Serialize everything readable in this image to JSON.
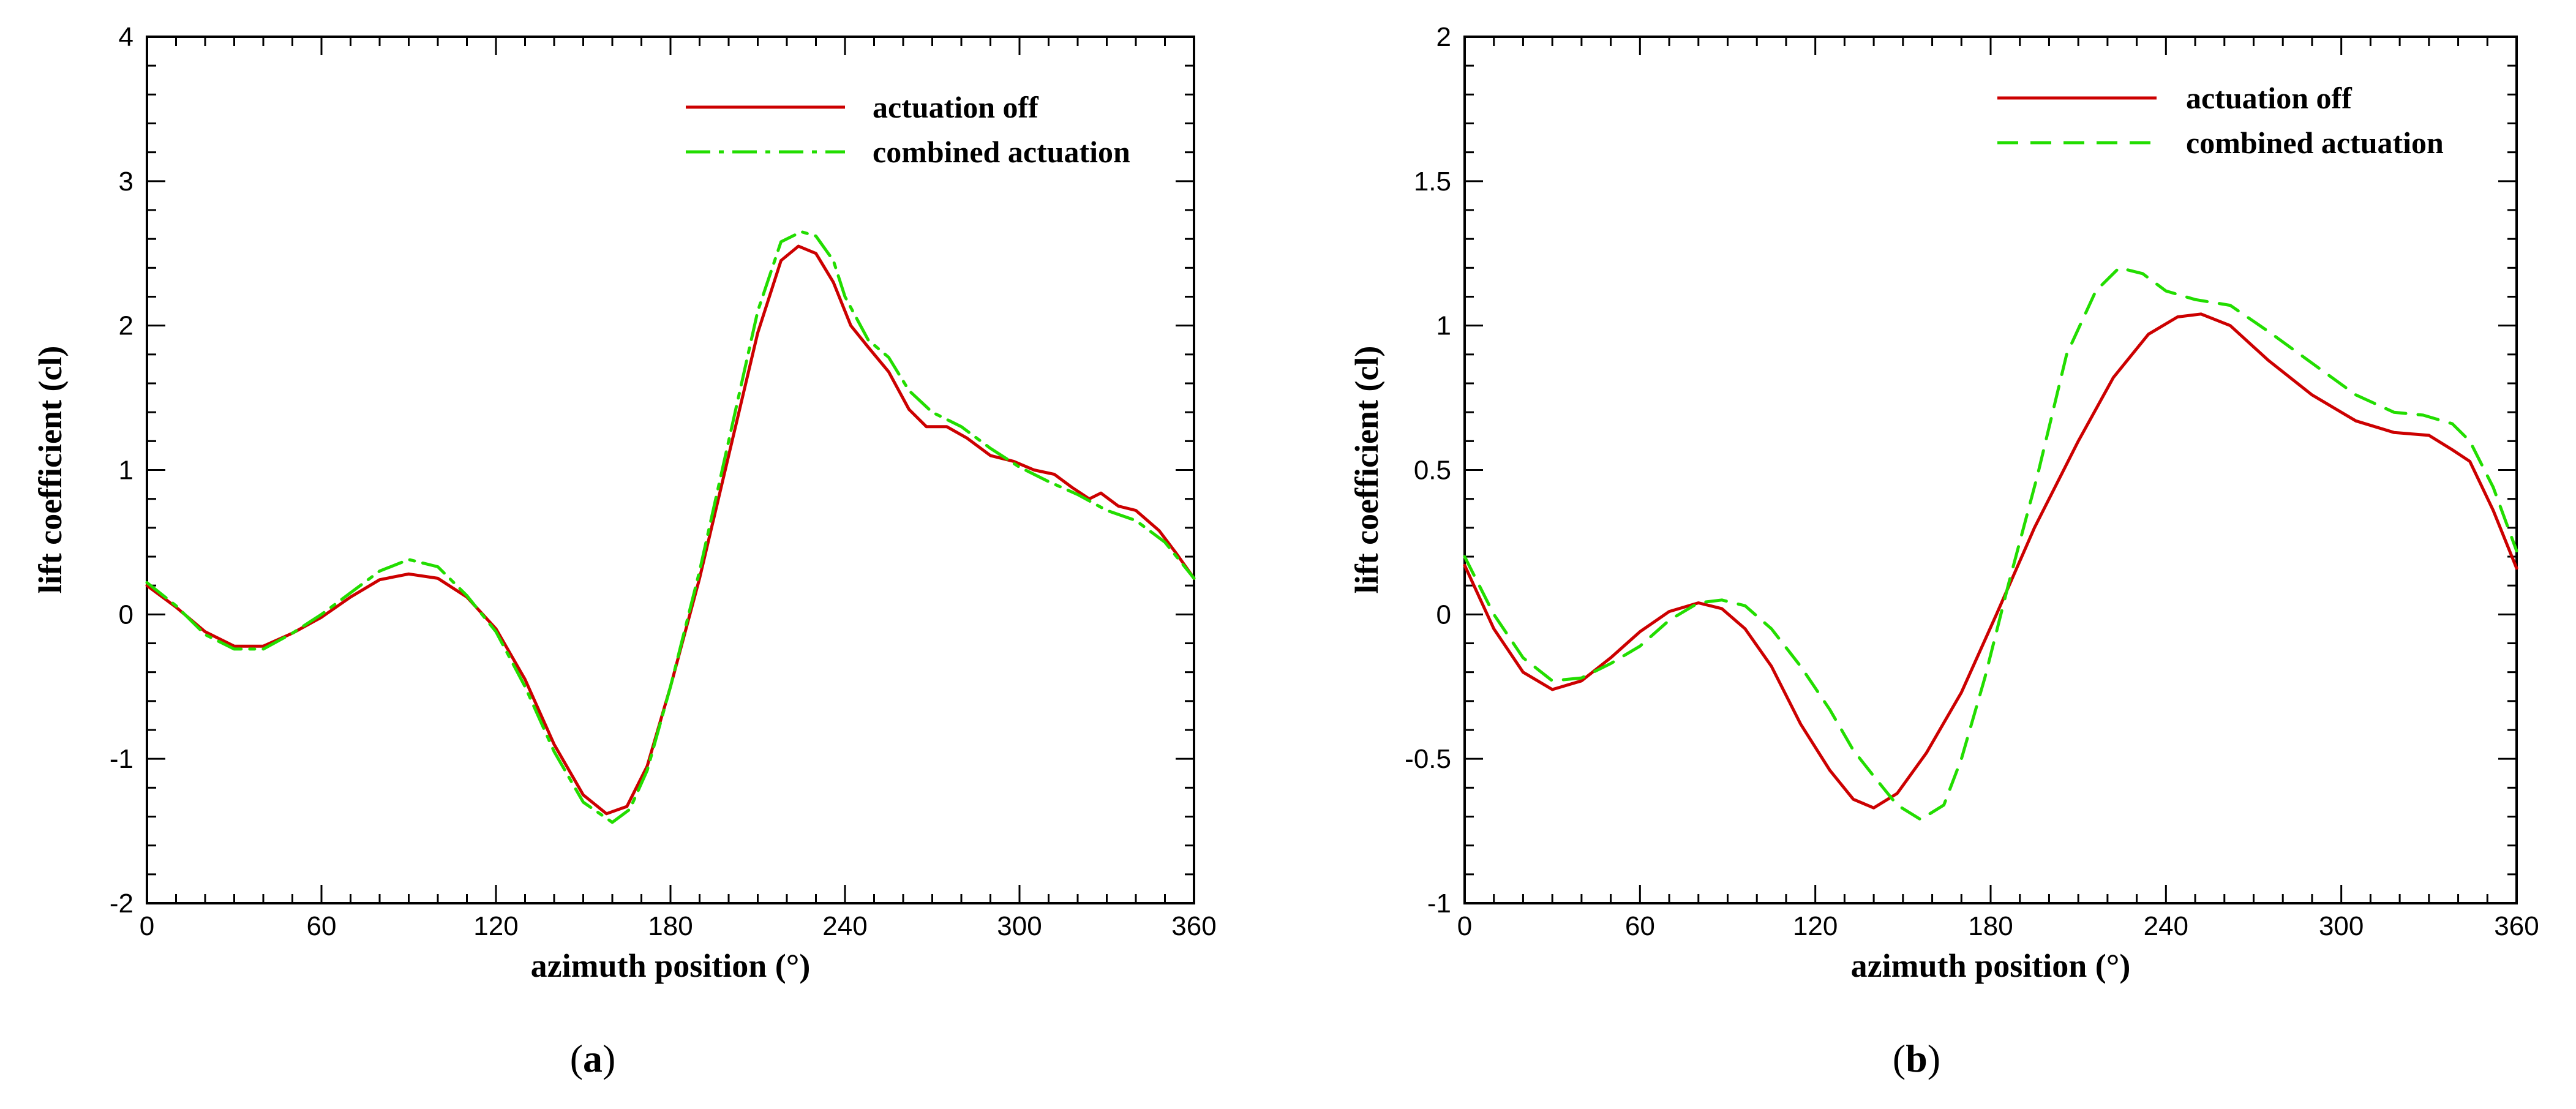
{
  "colors": {
    "actuation_off": "#cc0000",
    "combined_actuation": "#22dd00",
    "axis": "#000000"
  },
  "chart_data": [
    {
      "panel_label": "a",
      "type": "line",
      "xlabel": "azimuth position (°)",
      "ylabel": "lift coefficient (cl)",
      "xlim": [
        0,
        360
      ],
      "ylim": [
        -2,
        4
      ],
      "xticks": [
        0,
        60,
        120,
        180,
        240,
        300,
        360
      ],
      "yticks": [
        -2,
        -1,
        0,
        1,
        2,
        3,
        4
      ],
      "legend_position": "top-right",
      "series": [
        {
          "name": "actuation off",
          "style": "solid",
          "points": [
            [
              0,
              0.2
            ],
            [
              10,
              0.05
            ],
            [
              20,
              -0.12
            ],
            [
              30,
              -0.22
            ],
            [
              40,
              -0.22
            ],
            [
              50,
              -0.13
            ],
            [
              60,
              -0.02
            ],
            [
              70,
              0.12
            ],
            [
              80,
              0.24
            ],
            [
              90,
              0.28
            ],
            [
              100,
              0.25
            ],
            [
              110,
              0.12
            ],
            [
              120,
              -0.1
            ],
            [
              130,
              -0.45
            ],
            [
              140,
              -0.9
            ],
            [
              150,
              -1.25
            ],
            [
              158,
              -1.38
            ],
            [
              165,
              -1.33
            ],
            [
              172,
              -1.05
            ],
            [
              180,
              -0.5
            ],
            [
              190,
              0.25
            ],
            [
              200,
              1.1
            ],
            [
              210,
              1.95
            ],
            [
              218,
              2.45
            ],
            [
              224,
              2.55
            ],
            [
              230,
              2.5
            ],
            [
              236,
              2.3
            ],
            [
              242,
              2.0
            ],
            [
              248,
              1.85
            ],
            [
              255,
              1.68
            ],
            [
              262,
              1.42
            ],
            [
              268,
              1.3
            ],
            [
              275,
              1.3
            ],
            [
              282,
              1.22
            ],
            [
              290,
              1.1
            ],
            [
              298,
              1.06
            ],
            [
              305,
              1.0
            ],
            [
              312,
              0.97
            ],
            [
              318,
              0.88
            ],
            [
              324,
              0.8
            ],
            [
              328,
              0.84
            ],
            [
              334,
              0.75
            ],
            [
              340,
              0.72
            ],
            [
              348,
              0.58
            ],
            [
              354,
              0.42
            ],
            [
              360,
              0.25
            ]
          ]
        },
        {
          "name": "combined actuation",
          "style": "dashdot",
          "points": [
            [
              0,
              0.22
            ],
            [
              10,
              0.06
            ],
            [
              20,
              -0.14
            ],
            [
              30,
              -0.24
            ],
            [
              40,
              -0.24
            ],
            [
              50,
              -0.13
            ],
            [
              60,
              0.0
            ],
            [
              70,
              0.15
            ],
            [
              80,
              0.3
            ],
            [
              90,
              0.38
            ],
            [
              100,
              0.33
            ],
            [
              110,
              0.13
            ],
            [
              120,
              -0.12
            ],
            [
              130,
              -0.5
            ],
            [
              140,
              -0.95
            ],
            [
              150,
              -1.3
            ],
            [
              160,
              -1.44
            ],
            [
              166,
              -1.35
            ],
            [
              172,
              -1.08
            ],
            [
              180,
              -0.5
            ],
            [
              190,
              0.3
            ],
            [
              200,
              1.2
            ],
            [
              210,
              2.1
            ],
            [
              218,
              2.58
            ],
            [
              225,
              2.65
            ],
            [
              230,
              2.62
            ],
            [
              236,
              2.45
            ],
            [
              240,
              2.2
            ],
            [
              248,
              1.9
            ],
            [
              255,
              1.78
            ],
            [
              262,
              1.55
            ],
            [
              270,
              1.4
            ],
            [
              280,
              1.3
            ],
            [
              290,
              1.15
            ],
            [
              300,
              1.02
            ],
            [
              310,
              0.92
            ],
            [
              320,
              0.83
            ],
            [
              330,
              0.72
            ],
            [
              340,
              0.65
            ],
            [
              350,
              0.5
            ],
            [
              360,
              0.25
            ]
          ]
        }
      ]
    },
    {
      "panel_label": "b",
      "type": "line",
      "xlabel": "azimuth position (°)",
      "ylabel": "lift coefficient (cl)",
      "xlim": [
        0,
        360
      ],
      "ylim": [
        -1,
        2
      ],
      "xticks": [
        0,
        60,
        120,
        180,
        240,
        300,
        360
      ],
      "yticks": [
        -1,
        -0.5,
        0,
        0.5,
        1,
        1.5,
        2
      ],
      "legend_position": "top-right",
      "series": [
        {
          "name": "actuation off",
          "style": "solid",
          "points": [
            [
              0,
              0.17
            ],
            [
              10,
              -0.05
            ],
            [
              20,
              -0.2
            ],
            [
              30,
              -0.26
            ],
            [
              40,
              -0.23
            ],
            [
              50,
              -0.15
            ],
            [
              60,
              -0.06
            ],
            [
              70,
              0.01
            ],
            [
              80,
              0.04
            ],
            [
              88,
              0.02
            ],
            [
              96,
              -0.05
            ],
            [
              105,
              -0.18
            ],
            [
              115,
              -0.38
            ],
            [
              125,
              -0.54
            ],
            [
              133,
              -0.64
            ],
            [
              140,
              -0.67
            ],
            [
              148,
              -0.62
            ],
            [
              158,
              -0.48
            ],
            [
              170,
              -0.27
            ],
            [
              182,
              0.0
            ],
            [
              195,
              0.3
            ],
            [
              210,
              0.6
            ],
            [
              222,
              0.82
            ],
            [
              234,
              0.97
            ],
            [
              244,
              1.03
            ],
            [
              252,
              1.04
            ],
            [
              262,
              1.0
            ],
            [
              275,
              0.88
            ],
            [
              290,
              0.76
            ],
            [
              305,
              0.67
            ],
            [
              318,
              0.63
            ],
            [
              330,
              0.62
            ],
            [
              338,
              0.57
            ],
            [
              344,
              0.53
            ],
            [
              352,
              0.36
            ],
            [
              360,
              0.16
            ]
          ]
        },
        {
          "name": "combined actuation",
          "style": "dashed",
          "points": [
            [
              0,
              0.2
            ],
            [
              10,
              0.0
            ],
            [
              20,
              -0.15
            ],
            [
              30,
              -0.23
            ],
            [
              40,
              -0.22
            ],
            [
              50,
              -0.17
            ],
            [
              60,
              -0.11
            ],
            [
              70,
              -0.02
            ],
            [
              80,
              0.04
            ],
            [
              88,
              0.05
            ],
            [
              96,
              0.03
            ],
            [
              105,
              -0.05
            ],
            [
              115,
              -0.18
            ],
            [
              125,
              -0.33
            ],
            [
              133,
              -0.47
            ],
            [
              140,
              -0.56
            ],
            [
              148,
              -0.66
            ],
            [
              156,
              -0.71
            ],
            [
              164,
              -0.66
            ],
            [
              170,
              -0.5
            ],
            [
              178,
              -0.22
            ],
            [
              186,
              0.1
            ],
            [
              196,
              0.48
            ],
            [
              206,
              0.9
            ],
            [
              216,
              1.12
            ],
            [
              224,
              1.2
            ],
            [
              232,
              1.18
            ],
            [
              240,
              1.12
            ],
            [
              250,
              1.09
            ],
            [
              262,
              1.07
            ],
            [
              275,
              0.98
            ],
            [
              290,
              0.87
            ],
            [
              305,
              0.76
            ],
            [
              318,
              0.7
            ],
            [
              328,
              0.69
            ],
            [
              338,
              0.66
            ],
            [
              344,
              0.6
            ],
            [
              352,
              0.44
            ],
            [
              360,
              0.22
            ]
          ]
        }
      ]
    }
  ],
  "captions": [
    {
      "open": "(",
      "letter": "a",
      "close": ")"
    },
    {
      "open": "(",
      "letter": "b",
      "close": ")"
    }
  ]
}
